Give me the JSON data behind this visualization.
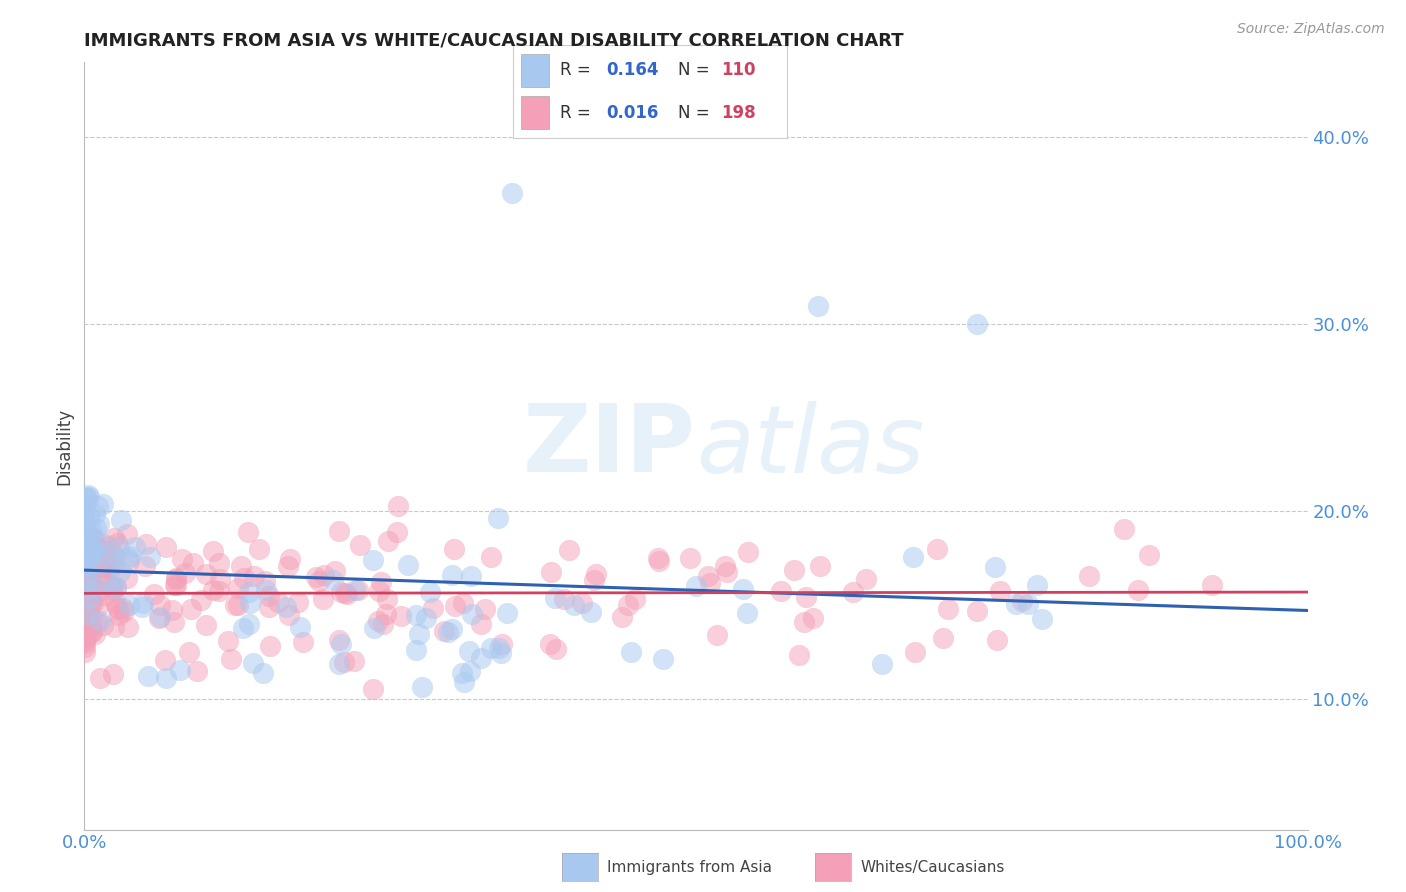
{
  "title": "IMMIGRANTS FROM ASIA VS WHITE/CAUCASIAN DISABILITY CORRELATION CHART",
  "source": "Source: ZipAtlas.com",
  "ylabel": "Disability",
  "xlim": [
    0.0,
    1.0
  ],
  "ylim": [
    0.03,
    0.44
  ],
  "yticks": [
    0.1,
    0.2,
    0.3,
    0.4
  ],
  "xticks": [
    0.0,
    1.0
  ],
  "xtick_labels": [
    "0.0%",
    "100.0%"
  ],
  "ytick_labels": [
    "10.0%",
    "20.0%",
    "30.0%",
    "40.0%"
  ],
  "blue_R": 0.164,
  "blue_N": 110,
  "pink_R": 0.016,
  "pink_N": 198,
  "blue_color": "#A8C8F0",
  "pink_color": "#F4A0B8",
  "blue_line_color": "#3060B0",
  "pink_line_color": "#D04060",
  "watermark_text": "ZIPatlas",
  "background_color": "#FFFFFF",
  "grid_color": "#BBBBBB",
  "title_color": "#222222",
  "axis_label_color": "#444444",
  "tick_color": "#4A90D9",
  "legend_text_color": "#3366CC",
  "legend_label_color": "#333333"
}
